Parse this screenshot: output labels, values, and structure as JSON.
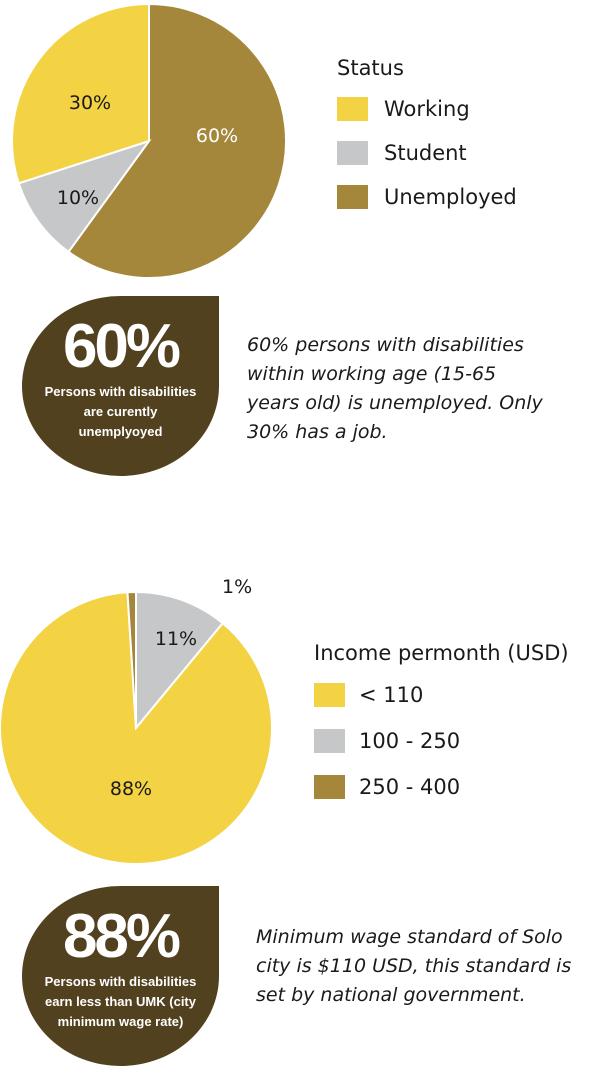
{
  "colors": {
    "working": "#f3d344",
    "student": "#c6c7c8",
    "unemployed": "#a5873c",
    "badge": "#52411f"
  },
  "chart_data": [
    {
      "type": "pie",
      "title": "",
      "legend_title": "Status",
      "legend_position": "right",
      "slices": [
        {
          "label": "Unemployed",
          "value": 60,
          "value_label": "60%",
          "color": "#a5873c"
        },
        {
          "label": "Student",
          "value": 10,
          "value_label": "10%",
          "color": "#c6c7c8"
        },
        {
          "label": "Working",
          "value": 30,
          "value_label": "30%",
          "color": "#f3d344"
        }
      ],
      "legend_order": [
        "Working",
        "Student",
        "Unemployed"
      ]
    },
    {
      "type": "pie",
      "title": "",
      "legend_title": "Income permonth (USD)",
      "legend_position": "right",
      "slices": [
        {
          "label": "100 - 250",
          "value": 11,
          "value_label": "11%",
          "color": "#c6c7c8"
        },
        {
          "label": "< 110",
          "value": 88,
          "value_label": "88%",
          "color": "#f3d344"
        },
        {
          "label": "250 - 400",
          "value": 1,
          "value_label": "1%",
          "color": "#a5873c"
        }
      ],
      "legend_order": [
        "< 110",
        "100 - 250",
        "250 - 400"
      ]
    }
  ],
  "legend1": {
    "title": "Status",
    "items": [
      {
        "label": "Working",
        "color": "#f3d344"
      },
      {
        "label": "Student",
        "color": "#c6c7c8"
      },
      {
        "label": "Unemployed",
        "color": "#a5873c"
      }
    ]
  },
  "legend2": {
    "title": "Income permonth (USD)",
    "items": [
      {
        "label": "< 110",
        "color": "#f3d344"
      },
      {
        "label": "100 - 250",
        "color": "#c6c7c8"
      },
      {
        "label": "250 - 400",
        "color": "#a5873c"
      }
    ]
  },
  "badge1": {
    "big": "60%",
    "lines": [
      "Persons with disabilities",
      "are curently",
      "unemplyoyed"
    ]
  },
  "badge2": {
    "big": "88%",
    "lines": [
      "Persons with disabilities",
      "earn less than UMK (city",
      "minimum wage rate)"
    ]
  },
  "note1": {
    "lines": [
      "60% persons with disabilities",
      "within working age (15-65",
      "years old) is unemployed. Only",
      "30% has a job."
    ]
  },
  "note2": {
    "lines": [
      "Minimum wage standard of Solo",
      "city is  $110 USD, this standard is",
      "set by national government."
    ]
  }
}
